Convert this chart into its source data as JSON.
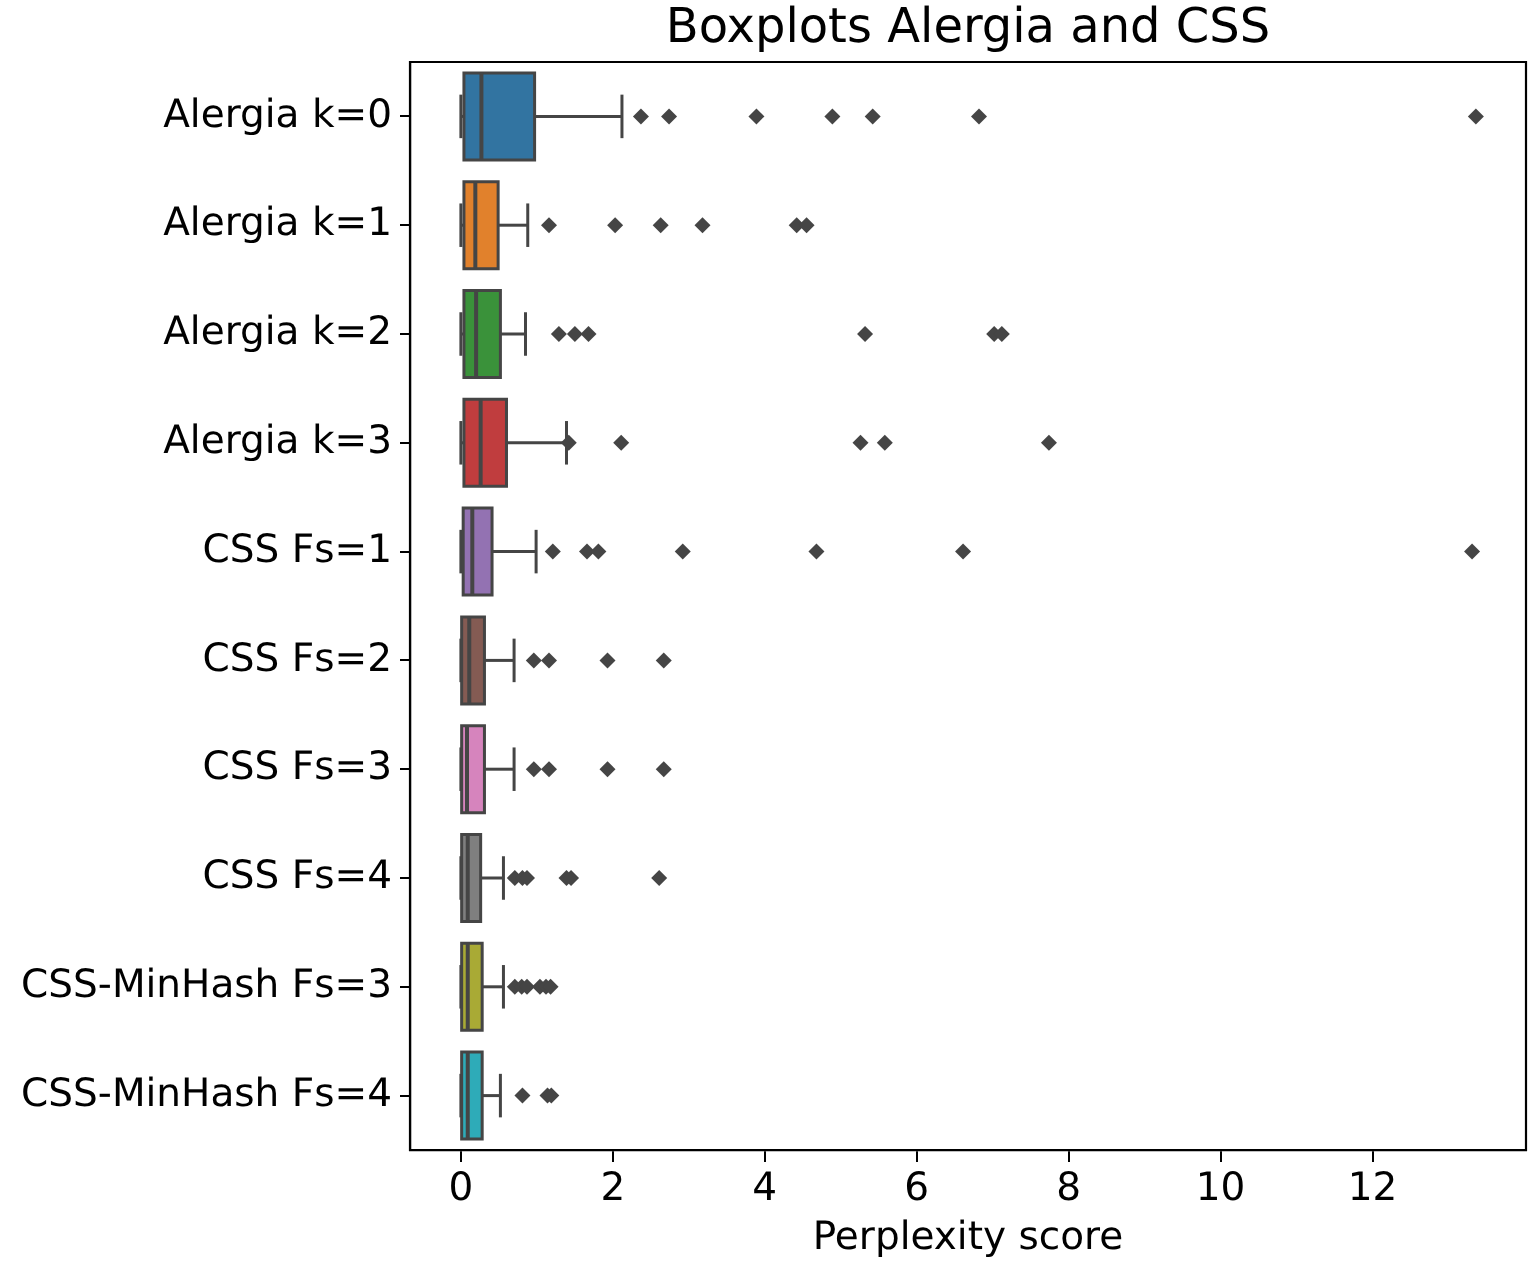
{
  "chart_data": {
    "type": "box",
    "title": "Boxplots Alergia and CSS",
    "xlabel": "Perplexity score",
    "orientation": "horizontal",
    "marker": "diamond",
    "categories": [
      "Alergia k=0",
      "Alergia k=1",
      "Alergia k=2",
      "Alergia k=3",
      "CSS Fs=1",
      "CSS Fs=2",
      "CSS Fs=3",
      "CSS Fs=4",
      "CSS-MinHash Fs=3",
      "CSS-MinHash Fs=4"
    ],
    "colors": [
      "#3274a1",
      "#e1812c",
      "#3a923a",
      "#c03d3e",
      "#9372b2",
      "#845b53",
      "#d684bd",
      "#7f7f7f",
      "#a9aa35",
      "#2eabb8"
    ],
    "boxes": [
      {
        "low": 0,
        "q1": 0.04,
        "median": 0.27,
        "q3": 0.97,
        "high": 2.12,
        "outliers": [
          2.37,
          2.74,
          3.89,
          4.89,
          5.42,
          6.82,
          13.36
        ]
      },
      {
        "low": 0,
        "q1": 0.04,
        "median": 0.19,
        "q3": 0.49,
        "high": 0.88,
        "outliers": [
          1.16,
          2.03,
          2.63,
          3.18,
          4.42,
          4.55
        ]
      },
      {
        "low": 0,
        "q1": 0.04,
        "median": 0.2,
        "q3": 0.52,
        "high": 0.85,
        "outliers": [
          1.29,
          1.5,
          1.68,
          5.32,
          7.02,
          7.12
        ]
      },
      {
        "low": 0,
        "q1": 0.04,
        "median": 0.26,
        "q3": 0.6,
        "high": 1.39,
        "outliers": [
          1.42,
          2.11,
          5.26,
          5.58,
          7.74
        ]
      },
      {
        "low": 0,
        "q1": 0.03,
        "median": 0.15,
        "q3": 0.41,
        "high": 0.99,
        "outliers": [
          1.21,
          1.66,
          1.81,
          2.92,
          4.68,
          6.61,
          13.31
        ]
      },
      {
        "low": 0,
        "q1": 0.01,
        "median": 0.11,
        "q3": 0.31,
        "high": 0.7,
        "outliers": [
          0.96,
          1.16,
          1.93,
          2.67
        ]
      },
      {
        "low": 0,
        "q1": 0.01,
        "median": 0.08,
        "q3": 0.31,
        "high": 0.7,
        "outliers": [
          0.96,
          1.16,
          1.93,
          2.67
        ]
      },
      {
        "low": 0,
        "q1": 0.01,
        "median": 0.09,
        "q3": 0.26,
        "high": 0.56,
        "outliers": [
          0.71,
          0.81,
          0.87,
          1.39,
          1.45,
          2.61
        ]
      },
      {
        "low": 0,
        "q1": 0.01,
        "median": 0.09,
        "q3": 0.28,
        "high": 0.56,
        "outliers": [
          0.71,
          0.8,
          0.87,
          1.04,
          1.12,
          1.18
        ]
      },
      {
        "low": 0,
        "q1": 0.01,
        "median": 0.09,
        "q3": 0.28,
        "high": 0.52,
        "outliers": [
          0.81,
          1.14,
          1.19
        ]
      }
    ],
    "xlim": [
      -0.67,
      14.02
    ],
    "xticks": [
      0,
      2,
      4,
      6,
      8,
      10,
      12
    ]
  }
}
